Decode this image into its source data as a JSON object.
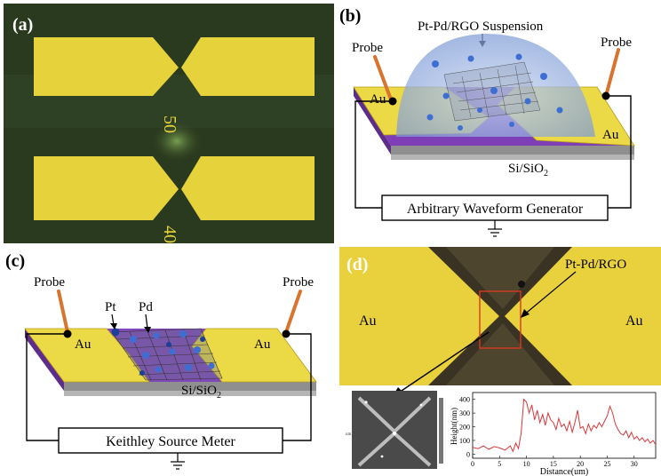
{
  "panels": {
    "a": {
      "label": "(a)",
      "gap_labels": [
        "50",
        "40"
      ],
      "colors": {
        "background": "#2c3a1f",
        "electrode": "#e6d23a"
      }
    },
    "b": {
      "label": "(b)",
      "suspension_label": "Pt-Pd/RGO Suspension",
      "probe_left": "Probe",
      "probe_right": "Probe",
      "electrode_left": "Au",
      "electrode_right": "Au",
      "substrate": "Si/SiO",
      "substrate_sub": "2",
      "instrument": "Arbitrary Waveform Generator"
    },
    "c": {
      "label": "(c)",
      "probe_left": "Probe",
      "probe_right": "Probe",
      "pt_label": "Pt",
      "pd_label": "Pd",
      "electrode_left": "Au",
      "electrode_right": "Au",
      "substrate": "Si/SiO",
      "substrate_sub": "2",
      "instrument": "Keithley Source Meter"
    },
    "d": {
      "label": "(d)",
      "material_label": "Pt-Pd/RGO",
      "electrode_left": "Au",
      "electrode_right": "Au",
      "afm_axis_label": "um",
      "profile": {
        "ylabel": "Height(nm)",
        "xlabel": "Distance(um)",
        "y_ticks": [
          "400",
          "300",
          "200",
          "100",
          "0"
        ],
        "x_ticks": [
          "0",
          "5",
          "10",
          "15",
          "20",
          "25",
          "30"
        ]
      }
    }
  },
  "chart_data": {
    "type": "line",
    "title": "",
    "xlabel": "Distance(um)",
    "ylabel": "Height(nm)",
    "xlim": [
      0,
      34
    ],
    "ylim": [
      -30,
      450
    ],
    "series": [
      {
        "x": [
          0,
          1,
          2,
          3,
          4,
          5,
          6,
          7,
          7.5,
          8,
          8.5,
          9,
          9.5,
          10,
          10.5,
          11,
          11.5,
          12,
          12.5,
          13,
          13.5,
          14,
          14.5,
          15,
          15.5,
          16,
          16.5,
          17,
          17.5,
          18,
          18.5,
          19,
          19.5,
          20,
          20.5,
          21,
          21.5,
          22,
          22.5,
          23,
          23.5,
          24,
          24.5,
          25,
          25.5,
          26,
          26.5,
          27,
          27.5,
          28,
          28.5,
          29,
          29.5,
          30,
          30.5,
          31,
          31.5,
          32,
          32.5,
          33,
          33.5,
          34
        ],
        "y": [
          50,
          40,
          60,
          35,
          55,
          45,
          30,
          60,
          20,
          80,
          40,
          150,
          400,
          380,
          300,
          360,
          250,
          320,
          230,
          290,
          210,
          300,
          250,
          230,
          180,
          260,
          200,
          220,
          170,
          240,
          160,
          230,
          320,
          190,
          200,
          150,
          220,
          170,
          210,
          190,
          230,
          200,
          240,
          280,
          350,
          300,
          220,
          180,
          150,
          140,
          170,
          120,
          160,
          110,
          130,
          100,
          120,
          90,
          110,
          80,
          100,
          70
        ]
      }
    ]
  }
}
